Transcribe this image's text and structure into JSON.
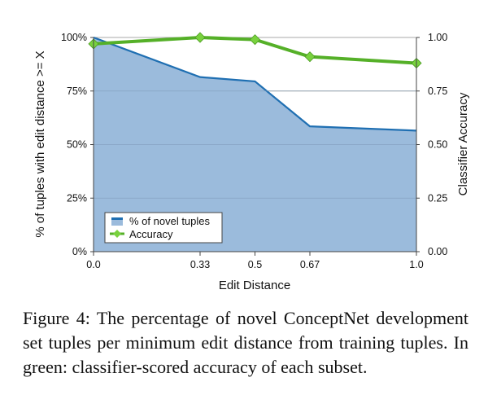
{
  "chart_data": {
    "type": "area",
    "x": [
      0.0,
      0.33,
      0.5,
      0.67,
      1.0
    ],
    "xtick_labels": [
      "0.0",
      "0.33",
      "0.5",
      "0.67",
      "1.0"
    ],
    "xlabel": "Edit Distance",
    "y_left_label": "% of tuples with edit distance >= X",
    "y_left_ticks": [
      "0%",
      "25%",
      "50%",
      "75%",
      "100%"
    ],
    "y_left_lim": [
      0,
      100
    ],
    "y_right_label": "Classifier Accuracy",
    "y_right_ticks": [
      "0.00",
      "0.25",
      "0.50",
      "0.75",
      "1.00"
    ],
    "y_right_lim": [
      0,
      1
    ],
    "grid": true,
    "legend_position": "bottom-left",
    "series": [
      {
        "name": "% of novel tuples",
        "type": "area",
        "axis": "left",
        "color": "#1f6fb2",
        "fill": "#9bbbdc",
        "values": [
          100,
          81.5,
          79.5,
          58.5,
          56.5
        ]
      },
      {
        "name": "Accuracy",
        "type": "line",
        "axis": "right",
        "color": "#55b028",
        "marker_color": "#79d23e",
        "values": [
          0.97,
          1.0,
          0.99,
          0.91,
          0.88
        ]
      }
    ]
  },
  "caption": "Figure 4:  The percentage of novel ConceptNet development set tuples per minimum edit distance from training tuples. In green: classifier-scored accuracy of each subset."
}
